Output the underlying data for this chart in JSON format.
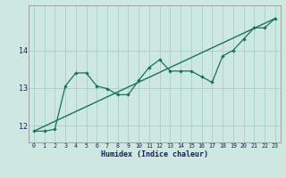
{
  "title": "",
  "xlabel": "Humidex (Indice chaleur)",
  "bg_color": "#cce8e0",
  "grid_color": "#aad4c8",
  "line_color": "#1a7060",
  "xlim": [
    -0.5,
    23.5
  ],
  "ylim": [
    11.55,
    15.2
  ],
  "yticks": [
    12,
    13,
    14
  ],
  "xticks": [
    0,
    1,
    2,
    3,
    4,
    5,
    6,
    7,
    8,
    9,
    10,
    11,
    12,
    13,
    14,
    15,
    16,
    17,
    18,
    19,
    20,
    21,
    22,
    23
  ],
  "trend_x": [
    0,
    23
  ],
  "trend_y": [
    11.85,
    14.85
  ],
  "data_x": [
    0,
    1,
    2,
    3,
    4,
    5,
    6,
    7,
    8,
    9,
    10,
    11,
    12,
    13,
    14,
    15,
    16,
    17,
    18,
    19,
    20,
    21,
    22,
    23
  ],
  "data_y": [
    11.85,
    11.85,
    11.9,
    13.05,
    13.4,
    13.4,
    13.05,
    12.98,
    12.82,
    12.82,
    13.2,
    13.55,
    13.75,
    13.45,
    13.45,
    13.45,
    13.3,
    13.15,
    13.85,
    14.0,
    14.3,
    14.6,
    14.6,
    14.85
  ]
}
